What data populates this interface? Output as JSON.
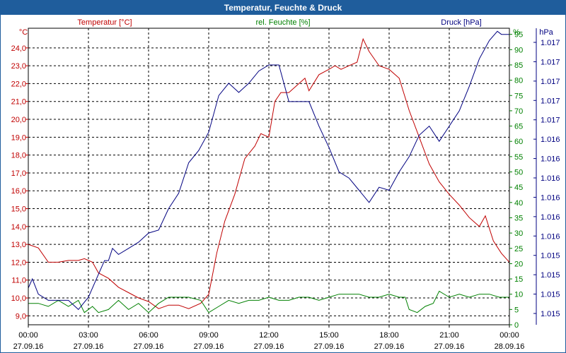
{
  "chart_data": {
    "type": "line",
    "title": "Temperatur, Feuchte & Druck",
    "x_ticks": [
      {
        "time": "00:00",
        "date": "27.09.16"
      },
      {
        "time": "03:00",
        "date": "27.09.16"
      },
      {
        "time": "06:00",
        "date": "27.09.16"
      },
      {
        "time": "09:00",
        "date": "27.09.16"
      },
      {
        "time": "12:00",
        "date": "27.09.16"
      },
      {
        "time": "15:00",
        "date": "27.09.16"
      },
      {
        "time": "18:00",
        "date": "27.09.16"
      },
      {
        "time": "21:00",
        "date": "27.09.16"
      },
      {
        "time": "00:00",
        "date": "28.09.16"
      }
    ],
    "x_range_hours": [
      0,
      24
    ],
    "temperature_axis": {
      "label": "Temperatur [°C]",
      "unit": "°C",
      "range": [
        8.5,
        25.1
      ],
      "ticks": [
        "24,0",
        "23,0",
        "22,0",
        "21,0",
        "20,0",
        "19,0",
        "18,0",
        "17,0",
        "16,0",
        "15,0",
        "14,0",
        "13,0",
        "12,0",
        "11,0",
        "10,0",
        "9,0"
      ]
    },
    "humidity_axis": {
      "label": "rel. Feuchte [%]",
      "unit": "%",
      "range": [
        0,
        97
      ],
      "ticks": [
        "95",
        "90",
        "85",
        "80",
        "75",
        "70",
        "65",
        "60",
        "55",
        "50",
        "45",
        "40",
        "35",
        "30",
        "25",
        "20",
        "15",
        "10",
        "5",
        "0"
      ]
    },
    "pressure_axis": {
      "label": "Druck [hPa]",
      "unit": "hPa",
      "ticks": [
        "1.017",
        "1.017",
        "1.017",
        "1.017",
        "1.017",
        "1.016",
        "1.016",
        "1.016",
        "1.016",
        "1.016",
        "1.016",
        "1.015",
        "1.015",
        "1.015",
        "1.015"
      ]
    },
    "series": [
      {
        "name": "Temperatur",
        "axis": "temperature",
        "color": "#c00000",
        "points": [
          [
            0,
            13.0
          ],
          [
            0.5,
            12.8
          ],
          [
            1,
            12.0
          ],
          [
            1.5,
            12.0
          ],
          [
            2,
            12.1
          ],
          [
            2.5,
            12.1
          ],
          [
            2.8,
            12.2
          ],
          [
            3.2,
            12.0
          ],
          [
            3.5,
            11.4
          ],
          [
            4,
            11.1
          ],
          [
            4.5,
            10.6
          ],
          [
            5,
            10.3
          ],
          [
            5.5,
            10.0
          ],
          [
            6,
            9.8
          ],
          [
            6.5,
            9.4
          ],
          [
            7,
            9.6
          ],
          [
            7.5,
            9.6
          ],
          [
            8,
            9.4
          ],
          [
            8.6,
            9.7
          ],
          [
            9,
            10.2
          ],
          [
            9.4,
            12.5
          ],
          [
            9.8,
            14.3
          ],
          [
            10.3,
            15.8
          ],
          [
            10.8,
            17.8
          ],
          [
            11.3,
            18.5
          ],
          [
            11.6,
            19.2
          ],
          [
            12,
            19.0
          ],
          [
            12.3,
            21.0
          ],
          [
            12.6,
            21.5
          ],
          [
            13,
            21.5
          ],
          [
            13.5,
            22.0
          ],
          [
            13.8,
            22.3
          ],
          [
            14,
            21.6
          ],
          [
            14.5,
            22.5
          ],
          [
            15,
            22.8
          ],
          [
            15.3,
            23.0
          ],
          [
            15.6,
            22.8
          ],
          [
            16,
            23.0
          ],
          [
            16.4,
            23.2
          ],
          [
            16.7,
            24.5
          ],
          [
            17,
            23.8
          ],
          [
            17.5,
            23.0
          ],
          [
            18,
            22.8
          ],
          [
            18.5,
            22.3
          ],
          [
            19,
            20.5
          ],
          [
            19.5,
            19.0
          ],
          [
            20,
            17.5
          ],
          [
            20.5,
            16.5
          ],
          [
            21,
            15.8
          ],
          [
            21.5,
            15.2
          ],
          [
            22,
            14.5
          ],
          [
            22.5,
            14.0
          ],
          [
            22.8,
            14.6
          ],
          [
            23.2,
            13.2
          ],
          [
            23.6,
            12.5
          ],
          [
            24,
            12.0
          ]
        ]
      },
      {
        "name": "rel. Feuchte",
        "axis": "humidity",
        "color": "#008000",
        "points": [
          [
            0,
            7
          ],
          [
            0.5,
            7
          ],
          [
            1,
            6
          ],
          [
            1.5,
            8
          ],
          [
            2,
            6
          ],
          [
            2.5,
            8
          ],
          [
            2.8,
            4
          ],
          [
            3.2,
            6
          ],
          [
            3.5,
            4
          ],
          [
            4,
            5
          ],
          [
            4.5,
            8
          ],
          [
            5,
            5
          ],
          [
            5.5,
            7
          ],
          [
            6,
            4
          ],
          [
            6.5,
            7
          ],
          [
            7,
            9
          ],
          [
            7.5,
            9
          ],
          [
            8,
            9
          ],
          [
            8.6,
            8
          ],
          [
            9,
            4
          ],
          [
            9.5,
            6
          ],
          [
            10,
            8
          ],
          [
            10.5,
            7
          ],
          [
            11,
            8
          ],
          [
            11.5,
            8
          ],
          [
            12,
            9
          ],
          [
            12.5,
            8
          ],
          [
            13,
            8
          ],
          [
            13.5,
            9
          ],
          [
            14,
            9
          ],
          [
            14.5,
            8
          ],
          [
            15,
            9
          ],
          [
            15.5,
            10
          ],
          [
            16,
            10
          ],
          [
            16.5,
            10
          ],
          [
            17,
            9
          ],
          [
            17.5,
            9
          ],
          [
            18,
            10
          ],
          [
            18.5,
            9
          ],
          [
            18.8,
            9
          ],
          [
            19,
            5
          ],
          [
            19.4,
            4
          ],
          [
            19.8,
            6
          ],
          [
            20.2,
            7
          ],
          [
            20.5,
            11
          ],
          [
            21,
            9
          ],
          [
            21.5,
            10
          ],
          [
            22,
            9
          ],
          [
            22.5,
            10
          ],
          [
            23,
            10
          ],
          [
            23.5,
            9
          ],
          [
            24,
            9
          ]
        ]
      },
      {
        "name": "Druck",
        "axis": "pressure",
        "color": "#000080",
        "points": [
          [
            0,
            12
          ],
          [
            0.2,
            15
          ],
          [
            0.5,
            10
          ],
          [
            1,
            8
          ],
          [
            1.5,
            8
          ],
          [
            2,
            8
          ],
          [
            2.5,
            5
          ],
          [
            3,
            9
          ],
          [
            3.4,
            15
          ],
          [
            3.8,
            21
          ],
          [
            4,
            21
          ],
          [
            4.2,
            25
          ],
          [
            4.5,
            23
          ],
          [
            5,
            25
          ],
          [
            5.5,
            27
          ],
          [
            6,
            30
          ],
          [
            6.5,
            31
          ],
          [
            7,
            38
          ],
          [
            7.5,
            43
          ],
          [
            8,
            53
          ],
          [
            8.5,
            57
          ],
          [
            9,
            63
          ],
          [
            9.5,
            75
          ],
          [
            10,
            79
          ],
          [
            10.5,
            76
          ],
          [
            11,
            79
          ],
          [
            11.5,
            83
          ],
          [
            12,
            85
          ],
          [
            12.5,
            85
          ],
          [
            13,
            73
          ],
          [
            13.5,
            73
          ],
          [
            14,
            73
          ],
          [
            14.5,
            65
          ],
          [
            15,
            58
          ],
          [
            15.5,
            50
          ],
          [
            16,
            48
          ],
          [
            16.5,
            44
          ],
          [
            17,
            40
          ],
          [
            17.5,
            45
          ],
          [
            18,
            44
          ],
          [
            18.5,
            50
          ],
          [
            19,
            55
          ],
          [
            19.5,
            62
          ],
          [
            20,
            65
          ],
          [
            20.5,
            60
          ],
          [
            21,
            65
          ],
          [
            21.5,
            70
          ],
          [
            22,
            78
          ],
          [
            22.5,
            87
          ],
          [
            23,
            93
          ],
          [
            23.4,
            96
          ],
          [
            23.6,
            95
          ],
          [
            24,
            95
          ]
        ]
      }
    ]
  }
}
